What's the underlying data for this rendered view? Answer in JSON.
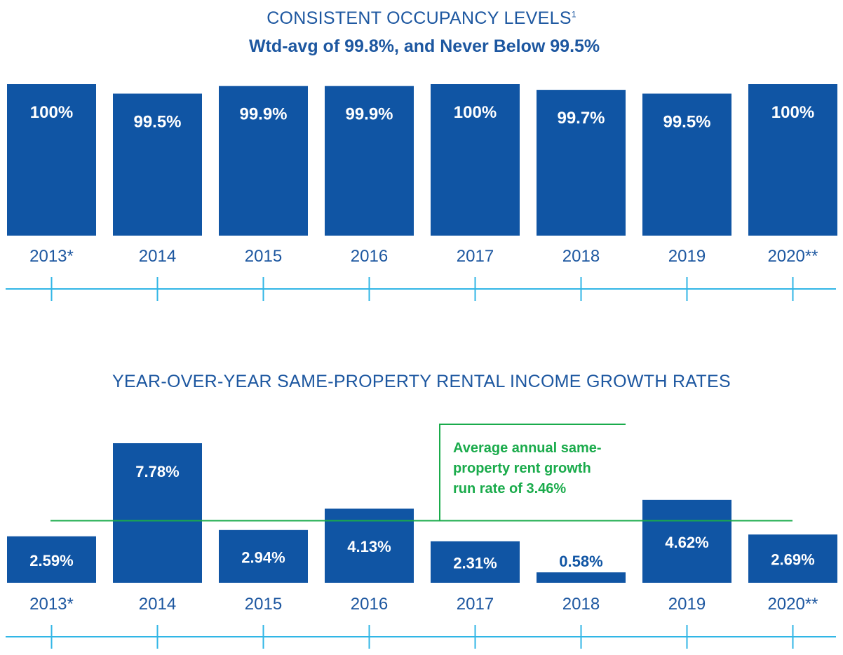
{
  "colors": {
    "bar": "#1055a4",
    "title": "#1d57a0",
    "axis": "#31b6e6",
    "average": "#1aab4b",
    "bar_label": "#ffffff",
    "tick_label": "#1d57a0"
  },
  "chart_data": [
    {
      "type": "bar",
      "title": "CONSISTENT OCCUPANCY LEVELS",
      "title_footnote": "1",
      "subtitle": "Wtd-avg of 99.8%, and Never Below 99.5%",
      "categories": [
        "2013*",
        "2014",
        "2015",
        "2016",
        "2017",
        "2018",
        "2019",
        "2020**"
      ],
      "values": [
        100,
        99.5,
        99.9,
        99.9,
        100,
        99.7,
        99.5,
        100
      ],
      "labels": [
        "100%",
        "99.5%",
        "99.9%",
        "99.9%",
        "100%",
        "99.7%",
        "99.5%",
        "100%"
      ],
      "unit": "%",
      "ylim": [
        92,
        100
      ],
      "grid": false,
      "xlabel": "",
      "ylabel": ""
    },
    {
      "type": "bar",
      "title": "YEAR-OVER-YEAR SAME-PROPERTY RENTAL INCOME GROWTH RATES",
      "categories": [
        "2013*",
        "2014",
        "2015",
        "2016",
        "2017",
        "2018",
        "2019",
        "2020**"
      ],
      "values": [
        2.59,
        7.78,
        2.94,
        4.13,
        2.31,
        0.58,
        4.62,
        2.69
      ],
      "labels": [
        "2.59%",
        "7.78%",
        "2.94%",
        "4.13%",
        "2.31%",
        "0.58%",
        "4.62%",
        "2.69%"
      ],
      "unit": "%",
      "ylim": [
        0,
        7.78
      ],
      "grid": false,
      "xlabel": "",
      "ylabel": "",
      "average_line": {
        "value": 3.46,
        "annotation_lines": [
          "Average annual same-",
          "property rent growth",
          "run rate of 3.46%"
        ]
      }
    }
  ]
}
